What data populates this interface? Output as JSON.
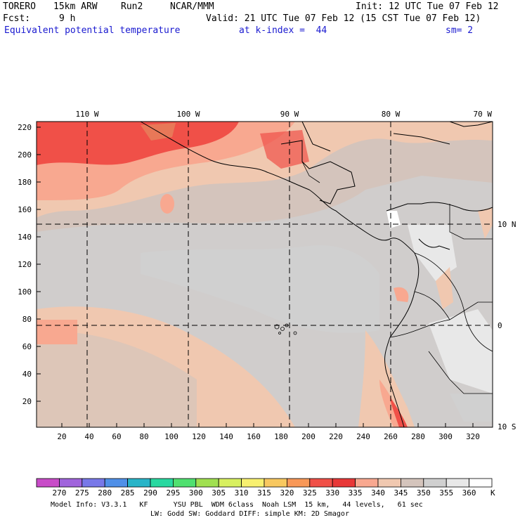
{
  "header": {
    "model": "TORERO",
    "resolution": "15km ARW",
    "run": "Run2",
    "org": "NCAR/MMM",
    "init": "Init: 12 UTC Tue 07 Feb 12",
    "fcst_label": "Fcst:",
    "fcst_value": "9 h",
    "valid": "Valid: 21 UTC Tue 07 Feb 12 (15 CST Tue 07 Feb 12)",
    "field": "Equivalent potential temperature",
    "level": "at k-index =  44",
    "smoothing": "sm= 2"
  },
  "map": {
    "top_lon_labels": [
      "110 W",
      "100 W",
      "90 W",
      "80 W",
      "70 W"
    ],
    "right_lat_labels": [
      "10 N",
      "0",
      "10 S"
    ],
    "left_ticks": [
      "220",
      "200",
      "180",
      "160",
      "140",
      "120",
      "100",
      "80",
      "60",
      "40",
      "20"
    ],
    "bottom_ticks": [
      "20",
      "40",
      "60",
      "80",
      "100",
      "120",
      "140",
      "160",
      "180",
      "200",
      "220",
      "240",
      "260",
      "280",
      "300",
      "320"
    ]
  },
  "colorbar": {
    "labels": [
      "270",
      "275",
      "280",
      "285",
      "290",
      "295",
      "300",
      "305",
      "310",
      "315",
      "320",
      "325",
      "330",
      "335",
      "340",
      "345",
      "350",
      "355",
      "360"
    ],
    "unit": "K",
    "colors": [
      "#c84cc8",
      "#a064dc",
      "#7878e8",
      "#5090e8",
      "#28b4c8",
      "#28d8a0",
      "#50e070",
      "#a0e050",
      "#d8f060",
      "#f8f070",
      "#f8c860",
      "#f89858",
      "#f05048",
      "#e83838",
      "#f8a890",
      "#f0c8b0",
      "#d4c4bc",
      "#d0d0d0",
      "#e8e8e8",
      "#ffffff"
    ]
  },
  "footer": {
    "line1": "Model Info: V3.3.1   KF      YSU PBL  WDM 6class  Noah LSM  15 km,   44 levels,   61 sec",
    "line2": "LW: Godd SW: Goddard DIFF: simple KM: 2D Smagor"
  }
}
